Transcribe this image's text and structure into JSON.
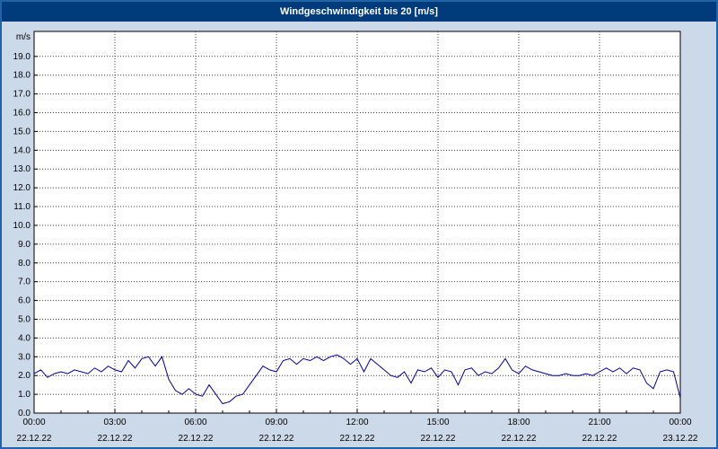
{
  "title_bar": {
    "title": "Windgeschwindigkeit bis 20 [m/s]",
    "bg_color": "#003b7c",
    "text_color": "#ffffff"
  },
  "page": {
    "background_color": "#ccd9e8",
    "border_color": "#2163a7"
  },
  "chart_data": {
    "type": "line",
    "title": "Windgeschwindigkeit bis 20 [m/s]",
    "unit_label": "m/s",
    "ylim": [
      0,
      20.33
    ],
    "y_tick_labels": [
      "0.0",
      "1.0",
      "2.0",
      "3.0",
      "4.0",
      "5.0",
      "6.0",
      "7.0",
      "8.0",
      "9.0",
      "10.0",
      "11.0",
      "12.0",
      "13.0",
      "14.0",
      "15.0",
      "16.0",
      "17.0",
      "18.0",
      "19.0"
    ],
    "x_ticks": [
      {
        "time": "00:00",
        "date": "22.12.22"
      },
      {
        "time": "03:00",
        "date": "22.12.22"
      },
      {
        "time": "06:00",
        "date": "22.12.22"
      },
      {
        "time": "09:00",
        "date": "22.12.22"
      },
      {
        "time": "12:00",
        "date": "22.12.22"
      },
      {
        "time": "15:00",
        "date": "22.12.22"
      },
      {
        "time": "18:00",
        "date": "22.12.22"
      },
      {
        "time": "21:00",
        "date": "22.12.22"
      },
      {
        "time": "00:00",
        "date": "23.12.22"
      }
    ],
    "x_minutes_step": 15,
    "x_total_minutes": 1440,
    "values": [
      2.1,
      2.3,
      1.9,
      2.1,
      2.2,
      2.1,
      2.3,
      2.2,
      2.1,
      2.4,
      2.2,
      2.5,
      2.3,
      2.2,
      2.8,
      2.4,
      2.9,
      3.0,
      2.5,
      3.0,
      1.8,
      1.2,
      1.0,
      1.3,
      1.0,
      0.9,
      1.5,
      1.0,
      0.5,
      0.6,
      0.9,
      1.0,
      1.5,
      2.0,
      2.5,
      2.3,
      2.2,
      2.8,
      2.9,
      2.6,
      2.9,
      2.8,
      3.0,
      2.8,
      3.0,
      3.1,
      2.9,
      2.6,
      2.9,
      2.2,
      2.9,
      2.6,
      2.3,
      2.0,
      1.9,
      2.2,
      1.6,
      2.3,
      2.2,
      2.4,
      1.9,
      2.3,
      2.2,
      1.5,
      2.3,
      2.4,
      2.0,
      2.2,
      2.1,
      2.4,
      2.9,
      2.3,
      2.1,
      2.5,
      2.3,
      2.2,
      2.1,
      2.0,
      2.0,
      2.1,
      2.0,
      2.0,
      2.1,
      2.0,
      2.2,
      2.4,
      2.2,
      2.4,
      2.1,
      2.4,
      2.3,
      1.6,
      1.3,
      2.2,
      2.3,
      2.2,
      0.8
    ],
    "line_color": "#000099",
    "grid_color": "#404040",
    "plot_bg": "#ffffff",
    "plot_border": "#000000",
    "grid_style": "dotted",
    "legend": "none"
  }
}
